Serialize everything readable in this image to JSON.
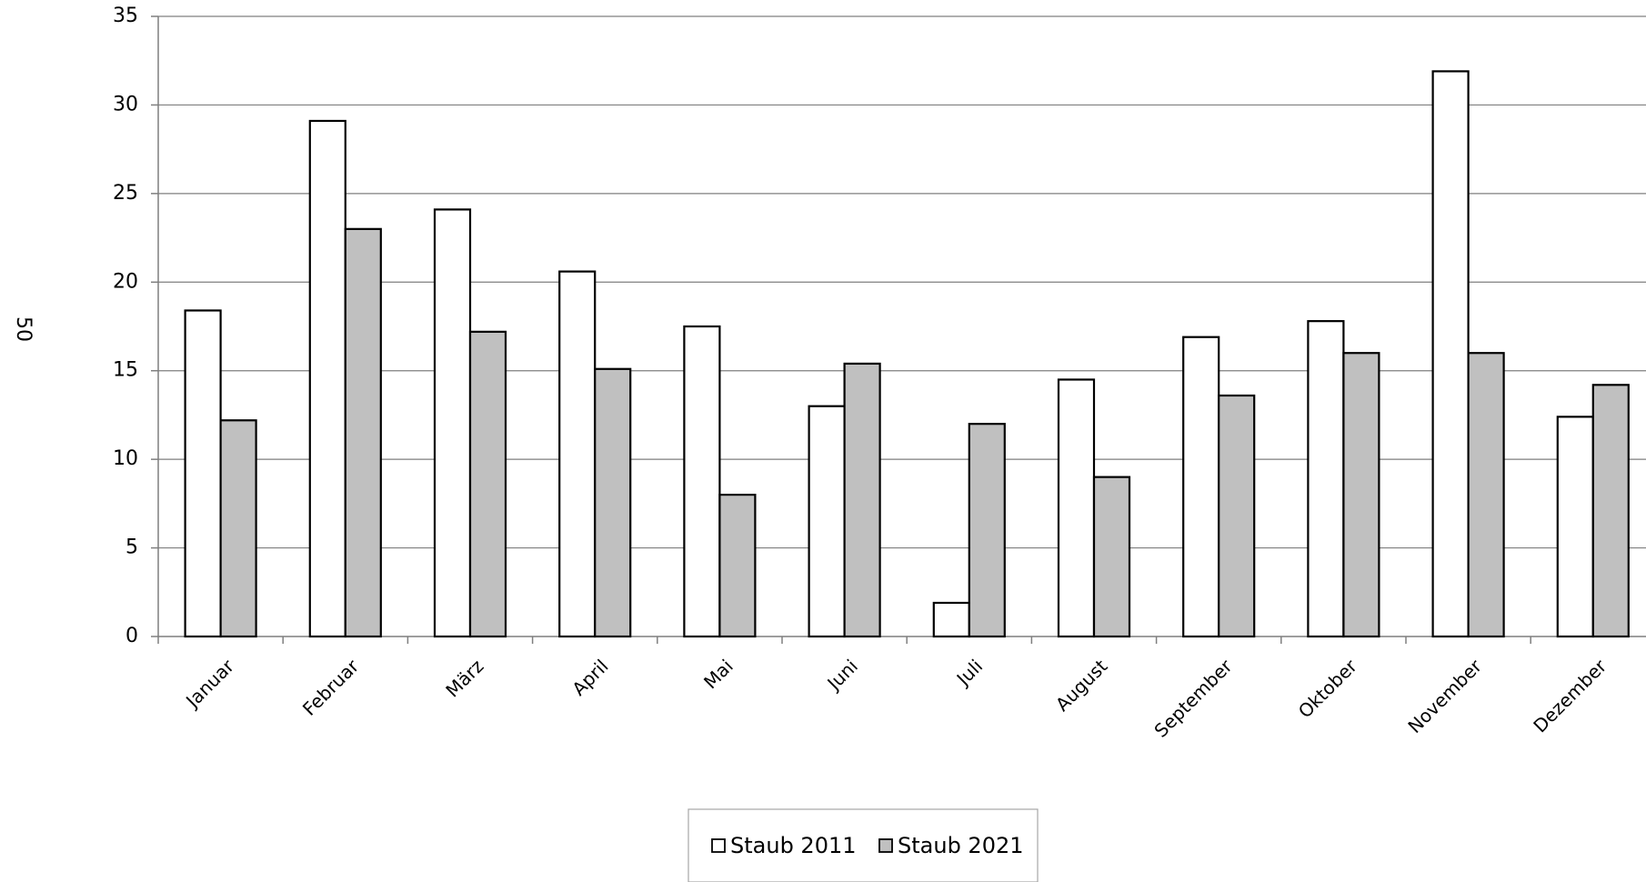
{
  "side_label": "50",
  "chart_data": {
    "type": "bar",
    "title": "",
    "xlabel": "",
    "ylabel": "",
    "categories": [
      "Januar",
      "Februar",
      "März",
      "April",
      "Mai",
      "Juni",
      "Juli",
      "August",
      "September",
      "Oktober",
      "November",
      "Dezember"
    ],
    "series": [
      {
        "name": "Staub 2011",
        "color": "#ffffff",
        "values": [
          18.4,
          29.1,
          24.1,
          20.6,
          17.5,
          13.0,
          1.9,
          14.5,
          16.9,
          17.8,
          31.9,
          12.4
        ]
      },
      {
        "name": "Staub 2021",
        "color": "#c0c0c0",
        "values": [
          12.2,
          23.0,
          17.2,
          15.1,
          8.0,
          15.4,
          12.0,
          9.0,
          13.6,
          16.0,
          16.0,
          14.2
        ]
      }
    ],
    "ylim": [
      0,
      35
    ],
    "yticks": [
      0,
      5,
      10,
      15,
      20,
      25,
      30,
      35
    ],
    "grid": true,
    "legend_position": "bottom-center"
  }
}
